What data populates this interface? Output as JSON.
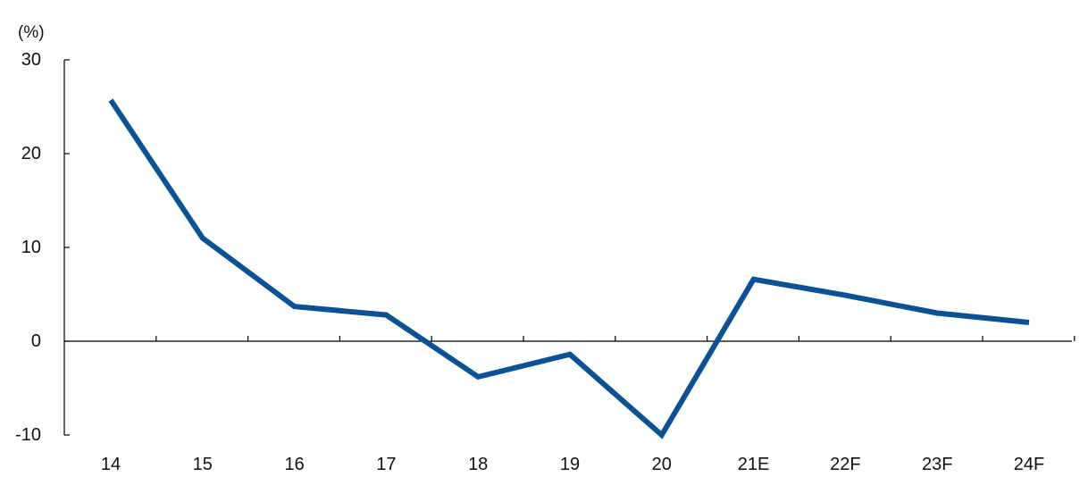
{
  "chart_data": {
    "type": "line",
    "title": "",
    "xlabel": "",
    "ylabel": "(%)",
    "categories": [
      "14",
      "15",
      "16",
      "17",
      "18",
      "19",
      "20",
      "21E",
      "22F",
      "23F",
      "24F"
    ],
    "series": [
      {
        "values": [
          25.7,
          11.0,
          3.7,
          2.8,
          -3.8,
          -1.4,
          -10.0,
          6.6,
          4.9,
          3.0,
          2.0
        ]
      }
    ],
    "ylim": [
      -10,
      30
    ],
    "yticks": [
      -10,
      0,
      10,
      20,
      30
    ],
    "grid": false,
    "legend": "none",
    "line_color": "#0a5196"
  }
}
